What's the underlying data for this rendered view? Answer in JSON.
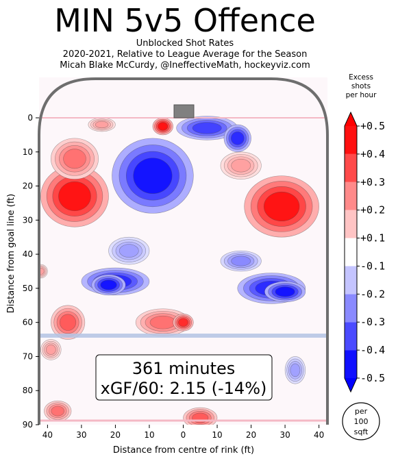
{
  "header": {
    "title": "MIN 5v5 Offence",
    "subtitle_1": "Unblocked Shot Rates",
    "subtitle_2": "2020-2021, Relative to League Average for the Season",
    "subtitle_3": "Micah Blake McCurdy, @IneffectiveMath, hockeyviz.com"
  },
  "summary": {
    "minutes": "361 minutes",
    "xgf": "xGF/60: 2.15 (-14%)"
  },
  "per_area_label": [
    "per",
    "100",
    "sqft"
  ],
  "colors": {
    "positive": "#ff0000",
    "negative": "#0000ff",
    "rink_border": "#6e6e6e",
    "goal_line": "#f4b8c4",
    "blue_line": "#b4c4e4",
    "net": "#808080"
  },
  "chart_data": {
    "type": "heatmap",
    "title": "MIN 5v5 Offence",
    "xlabel": "Distance from centre of rink (ft)",
    "ylabel": "Distance from goal line (ft)",
    "xlim": [
      -42.5,
      42.5
    ],
    "ylim": [
      0,
      90
    ],
    "x_ticks": [
      {
        "v": -40,
        "label": "40"
      },
      {
        "v": -30,
        "label": "30"
      },
      {
        "v": -20,
        "label": "20"
      },
      {
        "v": -10,
        "label": "10"
      },
      {
        "v": 0,
        "label": "0"
      },
      {
        "v": 10,
        "label": "10"
      },
      {
        "v": 20,
        "label": "20"
      },
      {
        "v": 30,
        "label": "30"
      },
      {
        "v": 40,
        "label": "40"
      }
    ],
    "y_ticks": [
      0,
      10,
      20,
      30,
      40,
      50,
      60,
      70,
      80,
      90
    ],
    "colorbar": {
      "title": [
        "Excess",
        "shots",
        "per hour"
      ],
      "levels": [
        -0.5,
        -0.4,
        -0.3,
        -0.2,
        -0.1,
        0.1,
        0.2,
        0.3,
        0.4,
        0.5
      ],
      "tick_labels": [
        "+0.5",
        "+0.4",
        "+0.3",
        "+0.2",
        "+0.1",
        "-0.1",
        "-0.2",
        "-0.3",
        "-0.4",
        "-0.5"
      ],
      "unit": "per 100 sqft"
    },
    "regions": [
      {
        "x": -32,
        "y": 23,
        "rx": 10,
        "ry": 9,
        "value": 0.5
      },
      {
        "x": -32,
        "y": 12,
        "rx": 7,
        "ry": 6,
        "value": 0.3
      },
      {
        "x": -6,
        "y": 2.5,
        "rx": 3,
        "ry": 2.5,
        "value": 0.5
      },
      {
        "x": -24,
        "y": 2,
        "rx": 4,
        "ry": 2,
        "value": 0.2
      },
      {
        "x": 29,
        "y": 26,
        "rx": 11,
        "ry": 9,
        "value": 0.5
      },
      {
        "x": 17,
        "y": 14,
        "rx": 6,
        "ry": 4,
        "value": 0.2
      },
      {
        "x": -34,
        "y": 60,
        "rx": 5,
        "ry": 5,
        "value": 0.35
      },
      {
        "x": -39,
        "y": 68,
        "rx": 3,
        "ry": 3,
        "value": 0.2
      },
      {
        "x": -6,
        "y": 60,
        "rx": 8,
        "ry": 4,
        "value": 0.3
      },
      {
        "x": 0,
        "y": 60,
        "rx": 3,
        "ry": 2.5,
        "value": 0.45
      },
      {
        "x": 5,
        "y": 88,
        "rx": 5,
        "ry": 3,
        "value": 0.35
      },
      {
        "x": -37,
        "y": 86,
        "rx": 4,
        "ry": 3,
        "value": 0.3
      },
      {
        "x": -42,
        "y": 45,
        "rx": 2,
        "ry": 2,
        "value": 0.2
      },
      {
        "x": -9,
        "y": 17,
        "rx": 12,
        "ry": 11,
        "value": -0.5
      },
      {
        "x": 7,
        "y": 3,
        "rx": 9,
        "ry": 3.5,
        "value": -0.4
      },
      {
        "x": 16,
        "y": 6,
        "rx": 4,
        "ry": 4,
        "value": -0.45
      },
      {
        "x": -20,
        "y": 48,
        "rx": 10,
        "ry": 4,
        "value": -0.45
      },
      {
        "x": -22,
        "y": 49,
        "rx": 5,
        "ry": 3,
        "value": -0.5
      },
      {
        "x": -16,
        "y": 39,
        "rx": 6,
        "ry": 4,
        "value": -0.2
      },
      {
        "x": 26,
        "y": 50,
        "rx": 10,
        "ry": 4.5,
        "value": -0.45
      },
      {
        "x": 30,
        "y": 51,
        "rx": 6,
        "ry": 3,
        "value": -0.5
      },
      {
        "x": 17,
        "y": 42,
        "rx": 6,
        "ry": 3,
        "value": -0.25
      },
      {
        "x": 33,
        "y": 74,
        "rx": 3,
        "ry": 4,
        "value": -0.2
      }
    ]
  }
}
